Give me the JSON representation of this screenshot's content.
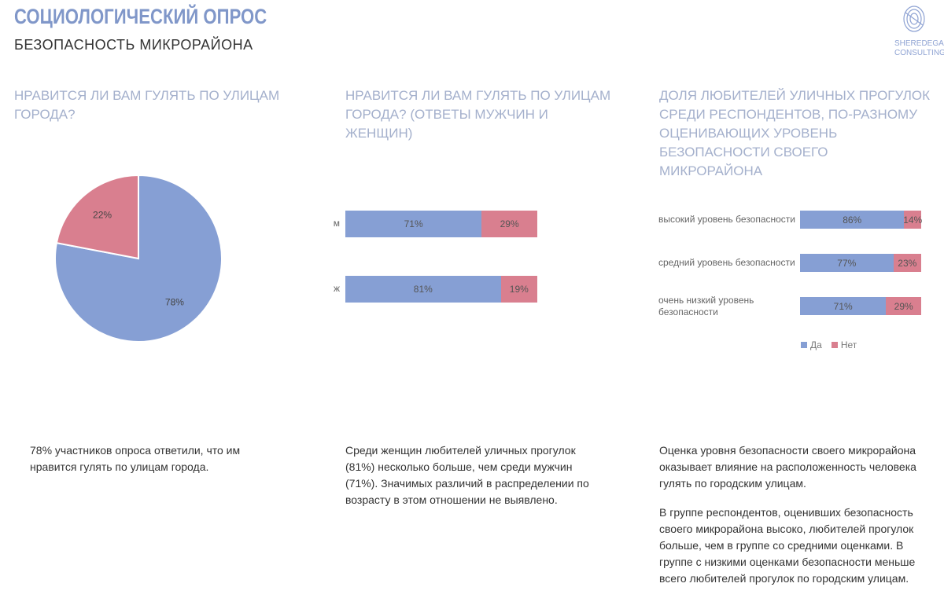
{
  "header": {
    "title": "СОЦИОЛОГИЧЕСКИЙ ОПРОС",
    "subtitle": "БЕЗОПАСНОСТЬ МИКРОРАЙОНА",
    "logo": "SHEREDEGA CONSULTING"
  },
  "colors": {
    "yes": "#869fd4",
    "no": "#d97f8f"
  },
  "chart_data": [
    {
      "type": "pie",
      "title": "НРАВИТСЯ ЛИ ВАМ ГУЛЯТЬ ПО УЛИЦАМ ГОРОДА?",
      "slices": [
        {
          "name": "Да",
          "value": 78,
          "label": "78%"
        },
        {
          "name": "Нет",
          "value": 22,
          "label": "22%"
        }
      ]
    },
    {
      "type": "bar",
      "stacked": true,
      "orientation": "horizontal",
      "title": "НРАВИТСЯ ЛИ ВАМ ГУЛЯТЬ ПО УЛИЦАМ ГОРОДА? (ОТВЕТЫ МУЖЧИН И ЖЕНЩИН)",
      "categories": [
        "м",
        "ж"
      ],
      "series": [
        {
          "name": "Да",
          "values": [
            71,
            81
          ],
          "labels": [
            "71%",
            "81%"
          ]
        },
        {
          "name": "Нет",
          "values": [
            29,
            19
          ],
          "labels": [
            "29%",
            "19%"
          ]
        }
      ]
    },
    {
      "type": "bar",
      "stacked": true,
      "orientation": "horizontal",
      "title": "ДОЛЯ ЛЮБИТЕЛЕЙ УЛИЧНЫХ ПРОГУЛОК СРЕДИ РЕСПОНДЕНТОВ, ПО-РАЗНОМУ ОЦЕНИВАЮЩИХ УРОВЕНЬ БЕЗОПАСНОСТИ СВОЕГО МИКРОРАЙОНА",
      "categories": [
        "высокий уровень безопасности",
        "средний уровень безопасности",
        "очень низкий уровень безопасности"
      ],
      "series": [
        {
          "name": "Да",
          "values": [
            86,
            77,
            71
          ],
          "labels": [
            "86%",
            "77%",
            "71%"
          ]
        },
        {
          "name": "Нет",
          "values": [
            14,
            23,
            29
          ],
          "labels": [
            "14%",
            "23%",
            "29%"
          ]
        }
      ],
      "legend": "bottom",
      "legend_labels": [
        "Да",
        "Нет"
      ]
    }
  ],
  "texts": {
    "t1": "78% участников опроса ответили, что им нравится гулять по улицам города.",
    "t2": "Среди женщин любителей уличных прогулок (81%) несколько больше, чем среди мужчин (71%). Значимых различий в распределении по возрасту в этом отношении не выявлено.",
    "t3a": "Оценка уровня безопасности своего микрорайона оказывает влияние на расположенность человека гулять по городским улицам.",
    "t3b": "В группе респондентов, оценивших безопасность своего микрорайона высоко, любителей прогулок больше, чем в группе со средними оценками. В группе с низкими оценками безопасности меньше всего любителей прогулок по городским улицам."
  }
}
